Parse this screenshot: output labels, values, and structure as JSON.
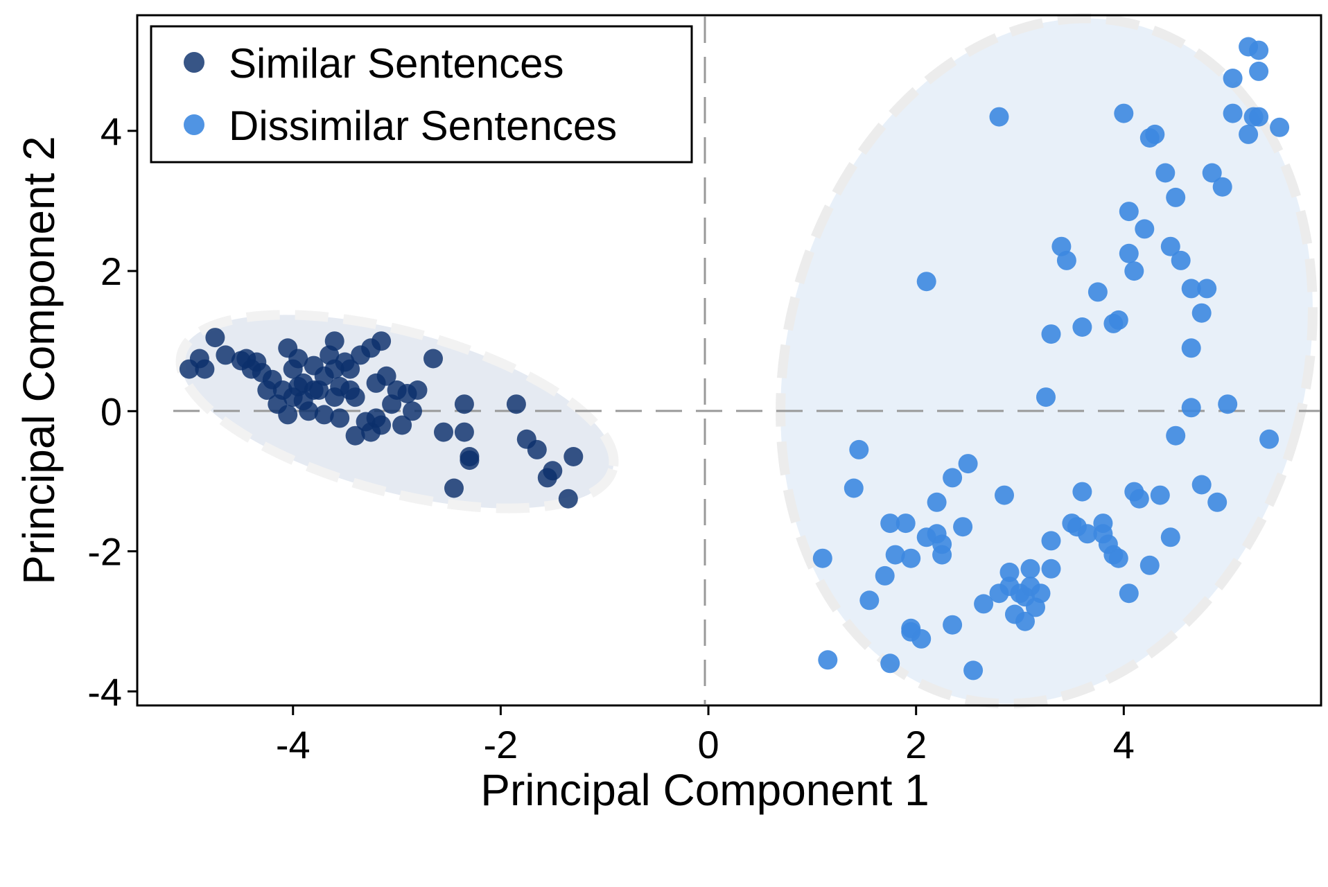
{
  "chart_data": {
    "type": "scatter",
    "xlabel": "Principal Component 1",
    "ylabel": "Principal Component 2",
    "xlim": [
      -5.5,
      5.9
    ],
    "ylim": [
      -4.2,
      5.65
    ],
    "xticks": [
      -4,
      -2,
      0,
      2,
      4
    ],
    "xtick_labels": [
      "-4",
      "-2",
      "0",
      "2",
      "4"
    ],
    "yticks": [
      -4,
      -2,
      0,
      2,
      4
    ],
    "ytick_labels": [
      "-4",
      "-2",
      "0",
      "2",
      "4"
    ],
    "reference_lines": {
      "x": 0,
      "y": 0,
      "style": "dashed"
    },
    "legend_position": "top-left",
    "grid": false,
    "series": [
      {
        "name": "Similar Sentences",
        "color": "#0b2f6b",
        "ellipse_fill": "#e5eaf2",
        "points": [
          [
            -5.0,
            0.6
          ],
          [
            -4.9,
            0.75
          ],
          [
            -4.85,
            0.6
          ],
          [
            -4.75,
            1.05
          ],
          [
            -4.65,
            0.8
          ],
          [
            -4.5,
            0.72
          ],
          [
            -4.45,
            0.75
          ],
          [
            -4.4,
            0.6
          ],
          [
            -4.35,
            0.7
          ],
          [
            -4.3,
            0.55
          ],
          [
            -4.25,
            0.3
          ],
          [
            -4.2,
            0.45
          ],
          [
            -4.15,
            0.1
          ],
          [
            -4.1,
            0.3
          ],
          [
            -4.05,
            0.9
          ],
          [
            -4.0,
            0.6
          ],
          [
            -4.0,
            0.2
          ],
          [
            -3.95,
            0.75
          ],
          [
            -3.9,
            0.4
          ],
          [
            -3.85,
            0.0
          ],
          [
            -3.8,
            0.65
          ],
          [
            -3.75,
            0.3
          ],
          [
            -3.7,
            0.5
          ],
          [
            -3.65,
            0.8
          ],
          [
            -3.6,
            1.0
          ],
          [
            -3.6,
            0.2
          ],
          [
            -3.55,
            0.35
          ],
          [
            -3.5,
            0.7
          ],
          [
            -3.45,
            0.6
          ],
          [
            -3.4,
            0.2
          ],
          [
            -3.35,
            0.8
          ],
          [
            -3.3,
            -0.15
          ],
          [
            -3.25,
            0.9
          ],
          [
            -3.2,
            -0.1
          ],
          [
            -3.15,
            1.0
          ],
          [
            -3.1,
            0.5
          ],
          [
            -3.05,
            0.1
          ],
          [
            -3.0,
            0.3
          ],
          [
            -2.95,
            -0.2
          ],
          [
            -2.9,
            0.25
          ],
          [
            -2.85,
            0.0
          ],
          [
            -2.8,
            0.3
          ],
          [
            -3.8,
            0.3
          ],
          [
            -3.9,
            0.15
          ],
          [
            -3.7,
            -0.05
          ],
          [
            -3.6,
            0.6
          ],
          [
            -3.55,
            -0.1
          ],
          [
            -3.45,
            0.3
          ],
          [
            -3.4,
            -0.35
          ],
          [
            -3.2,
            0.4
          ],
          [
            -3.25,
            -0.3
          ],
          [
            -3.15,
            -0.2
          ],
          [
            -4.05,
            -0.05
          ],
          [
            -3.95,
            0.35
          ],
          [
            -2.65,
            0.75
          ],
          [
            -2.55,
            -0.3
          ],
          [
            -2.35,
            0.1
          ],
          [
            -2.35,
            -0.3
          ],
          [
            -2.3,
            -0.65
          ],
          [
            -2.3,
            -0.7
          ],
          [
            -2.45,
            -1.1
          ],
          [
            -1.85,
            0.1
          ],
          [
            -1.75,
            -0.4
          ],
          [
            -1.65,
            -0.55
          ],
          [
            -1.55,
            -0.95
          ],
          [
            -1.5,
            -0.85
          ],
          [
            -1.3,
            -0.65
          ],
          [
            -1.35,
            -1.25
          ]
        ]
      },
      {
        "name": "Dissimilar Sentences",
        "color": "#3d88e0",
        "ellipse_fill": "#e8f0f9",
        "points": [
          [
            1.1,
            -2.1
          ],
          [
            1.15,
            -3.55
          ],
          [
            1.4,
            -1.1
          ],
          [
            1.45,
            -0.55
          ],
          [
            1.55,
            -2.7
          ],
          [
            1.7,
            -2.35
          ],
          [
            1.75,
            -1.6
          ],
          [
            1.75,
            -3.6
          ],
          [
            1.8,
            -2.05
          ],
          [
            1.9,
            -1.6
          ],
          [
            1.95,
            -2.1
          ],
          [
            1.95,
            -3.1
          ],
          [
            1.95,
            -3.15
          ],
          [
            2.05,
            -3.25
          ],
          [
            2.1,
            1.85
          ],
          [
            2.1,
            -1.8
          ],
          [
            2.2,
            -1.3
          ],
          [
            2.2,
            -1.75
          ],
          [
            2.25,
            -1.9
          ],
          [
            2.25,
            -2.05
          ],
          [
            2.35,
            -0.95
          ],
          [
            2.35,
            -3.05
          ],
          [
            2.45,
            -1.65
          ],
          [
            2.5,
            -0.75
          ],
          [
            2.55,
            -3.7
          ],
          [
            2.65,
            -2.75
          ],
          [
            2.8,
            4.2
          ],
          [
            2.8,
            -2.6
          ],
          [
            2.85,
            -1.2
          ],
          [
            2.9,
            -2.3
          ],
          [
            2.9,
            -2.5
          ],
          [
            2.95,
            -2.9
          ],
          [
            3.0,
            -2.6
          ],
          [
            3.05,
            -2.65
          ],
          [
            3.05,
            -3.0
          ],
          [
            3.1,
            -2.25
          ],
          [
            3.1,
            -2.5
          ],
          [
            3.15,
            -2.8
          ],
          [
            3.2,
            -2.6
          ],
          [
            3.25,
            0.2
          ],
          [
            3.3,
            1.1
          ],
          [
            3.3,
            -1.85
          ],
          [
            3.3,
            -2.25
          ],
          [
            3.4,
            2.35
          ],
          [
            3.45,
            2.15
          ],
          [
            3.5,
            -1.6
          ],
          [
            3.55,
            -1.65
          ],
          [
            3.6,
            1.2
          ],
          [
            3.6,
            -1.15
          ],
          [
            3.65,
            -1.75
          ],
          [
            3.75,
            1.7
          ],
          [
            3.8,
            -1.6
          ],
          [
            3.8,
            -1.75
          ],
          [
            3.85,
            -1.9
          ],
          [
            3.9,
            1.25
          ],
          [
            3.9,
            -2.05
          ],
          [
            3.95,
            1.3
          ],
          [
            3.95,
            -2.1
          ],
          [
            4.0,
            4.25
          ],
          [
            4.05,
            2.85
          ],
          [
            4.05,
            2.25
          ],
          [
            4.05,
            -2.6
          ],
          [
            4.1,
            2.0
          ],
          [
            4.1,
            -1.15
          ],
          [
            4.15,
            -1.25
          ],
          [
            4.2,
            2.6
          ],
          [
            4.25,
            3.9
          ],
          [
            4.25,
            -2.2
          ],
          [
            4.3,
            3.95
          ],
          [
            4.35,
            -1.2
          ],
          [
            4.4,
            3.4
          ],
          [
            4.45,
            2.35
          ],
          [
            4.45,
            -1.8
          ],
          [
            4.5,
            3.05
          ],
          [
            4.5,
            -0.35
          ],
          [
            4.55,
            2.15
          ],
          [
            4.65,
            1.75
          ],
          [
            4.65,
            0.9
          ],
          [
            4.65,
            0.05
          ],
          [
            4.75,
            1.4
          ],
          [
            4.75,
            -1.05
          ],
          [
            4.8,
            1.75
          ],
          [
            4.85,
            3.4
          ],
          [
            4.9,
            -1.3
          ],
          [
            4.95,
            3.2
          ],
          [
            5.0,
            0.1
          ],
          [
            5.05,
            4.75
          ],
          [
            5.05,
            4.25
          ],
          [
            5.2,
            5.2
          ],
          [
            5.2,
            3.95
          ],
          [
            5.25,
            4.2
          ],
          [
            5.3,
            4.2
          ],
          [
            5.3,
            5.15
          ],
          [
            5.3,
            4.85
          ],
          [
            5.4,
            -0.4
          ],
          [
            5.5,
            4.05
          ]
        ]
      }
    ]
  }
}
